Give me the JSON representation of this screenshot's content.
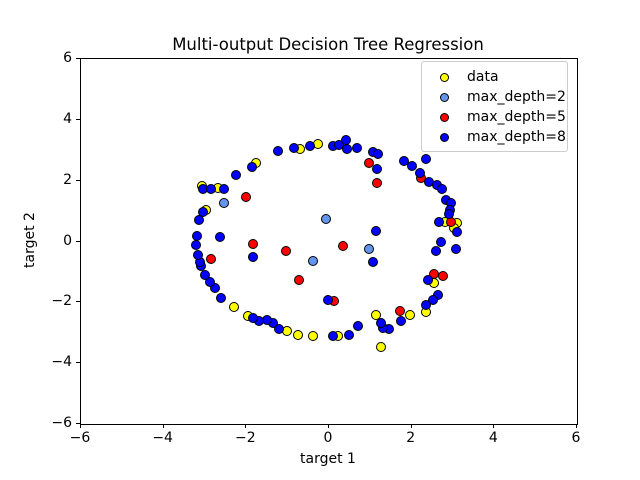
{
  "chart_data": {
    "type": "scatter",
    "title": "Multi-output Decision Tree Regression",
    "xlabel": "target 1",
    "ylabel": "target 2",
    "xlim": [
      -6,
      6
    ],
    "ylim": [
      -6,
      6
    ],
    "xticks": [
      -6,
      -4,
      -2,
      0,
      2,
      4,
      6
    ],
    "yticks": [
      -6,
      -4,
      -2,
      0,
      2,
      4,
      6
    ],
    "grid": false,
    "legend_position": "upper right",
    "marker_edge_color": "#000000",
    "series": [
      {
        "name": "data",
        "color": "#ffff00",
        "points": [
          [
            -0.7,
            3.04
          ],
          [
            -0.27,
            3.2
          ],
          [
            -1.77,
            2.59
          ],
          [
            -2.69,
            1.77
          ],
          [
            -3.08,
            1.84
          ],
          [
            -2.98,
            1.02
          ],
          [
            -2.3,
            -2.16
          ],
          [
            -1.96,
            -2.46
          ],
          [
            -1.02,
            -2.94
          ],
          [
            -0.75,
            -3.07
          ],
          [
            -0.39,
            -3.11
          ],
          [
            0.22,
            -3.11
          ],
          [
            1.26,
            -3.46
          ],
          [
            1.14,
            -2.42
          ],
          [
            1.96,
            -2.42
          ],
          [
            2.35,
            -2.33
          ],
          [
            2.55,
            -1.35
          ],
          [
            3.1,
            0.6
          ],
          [
            3.03,
            0.44
          ],
          [
            2.81,
            0.63
          ]
        ]
      },
      {
        "name": "max_depth=2",
        "color": "#6495ed",
        "points": [
          [
            -2.55,
            1.28
          ],
          [
            -0.07,
            0.73
          ],
          [
            -0.39,
            -0.63
          ],
          [
            0.97,
            -0.24
          ]
        ]
      },
      {
        "name": "max_depth=5",
        "color": "#ff0000",
        "points": [
          [
            -2.01,
            1.45
          ],
          [
            -2.86,
            -0.57
          ],
          [
            -1.84,
            -0.08
          ],
          [
            -1.04,
            -0.31
          ],
          [
            -0.73,
            -1.28
          ],
          [
            0.34,
            -0.15
          ],
          [
            0.12,
            -1.97
          ],
          [
            0.97,
            2.59
          ],
          [
            1.16,
            1.93
          ],
          [
            2.23,
            2.1
          ],
          [
            1.72,
            -2.29
          ],
          [
            2.55,
            -1.06
          ],
          [
            2.76,
            -1.15
          ],
          [
            2.96,
            0.63
          ]
        ]
      },
      {
        "name": "max_depth=8",
        "color": "#0000ff",
        "points": [
          [
            -0.85,
            3.07
          ],
          [
            -0.46,
            3.14
          ],
          [
            0.1,
            3.14
          ],
          [
            0.24,
            3.17
          ],
          [
            0.41,
            3.33
          ],
          [
            0.44,
            3.04
          ],
          [
            0.68,
            3.07
          ],
          [
            1.07,
            2.94
          ],
          [
            1.19,
            2.88
          ],
          [
            1.82,
            2.65
          ],
          [
            2.01,
            2.49
          ],
          [
            2.21,
            2.26
          ],
          [
            2.35,
            2.72
          ],
          [
            2.42,
            1.97
          ],
          [
            2.62,
            1.87
          ],
          [
            2.74,
            1.74
          ],
          [
            2.84,
            1.38
          ],
          [
            2.96,
            1.28
          ],
          [
            2.93,
            1.02
          ],
          [
            2.91,
            0.89
          ],
          [
            2.67,
            0.63
          ],
          [
            3.1,
            0.31
          ],
          [
            2.72,
            -0.02
          ],
          [
            2.59,
            -0.31
          ],
          [
            3.08,
            -0.24
          ],
          [
            2.64,
            -1.77
          ],
          [
            2.52,
            -1.93
          ],
          [
            2.35,
            -2.1
          ],
          [
            2.4,
            -1.28
          ],
          [
            1.75,
            -2.62
          ],
          [
            1.45,
            -2.88
          ],
          [
            1.31,
            -2.85
          ],
          [
            1.26,
            -2.68
          ],
          [
            0.7,
            -2.78
          ],
          [
            0.48,
            -3.07
          ],
          [
            0.1,
            -3.11
          ],
          [
            -0.02,
            -1.93
          ],
          [
            -1.21,
            -2.88
          ],
          [
            -1.36,
            -2.68
          ],
          [
            -1.5,
            -2.58
          ],
          [
            -1.7,
            -2.62
          ],
          [
            -1.84,
            -2.52
          ],
          [
            -2.62,
            -1.87
          ],
          [
            -2.76,
            -1.54
          ],
          [
            -2.88,
            -1.32
          ],
          [
            -3.01,
            -1.09
          ],
          [
            -3.1,
            -0.8
          ],
          [
            -3.13,
            -0.67
          ],
          [
            -3.18,
            -0.44
          ],
          [
            -3.22,
            -0.11
          ],
          [
            -3.2,
            0.18
          ],
          [
            -3.15,
            0.7
          ],
          [
            -3.05,
            0.96
          ],
          [
            -3.05,
            1.74
          ],
          [
            -2.86,
            1.74
          ],
          [
            -2.55,
            1.74
          ],
          [
            -2.25,
            2.2
          ],
          [
            -1.87,
            2.46
          ],
          [
            -1.24,
            2.98
          ],
          [
            -2.64,
            0.15
          ],
          [
            -1.84,
            -0.5
          ],
          [
            1.14,
            0.34
          ],
          [
            1.07,
            -0.67
          ],
          [
            1.16,
            2.39
          ]
        ]
      }
    ]
  }
}
